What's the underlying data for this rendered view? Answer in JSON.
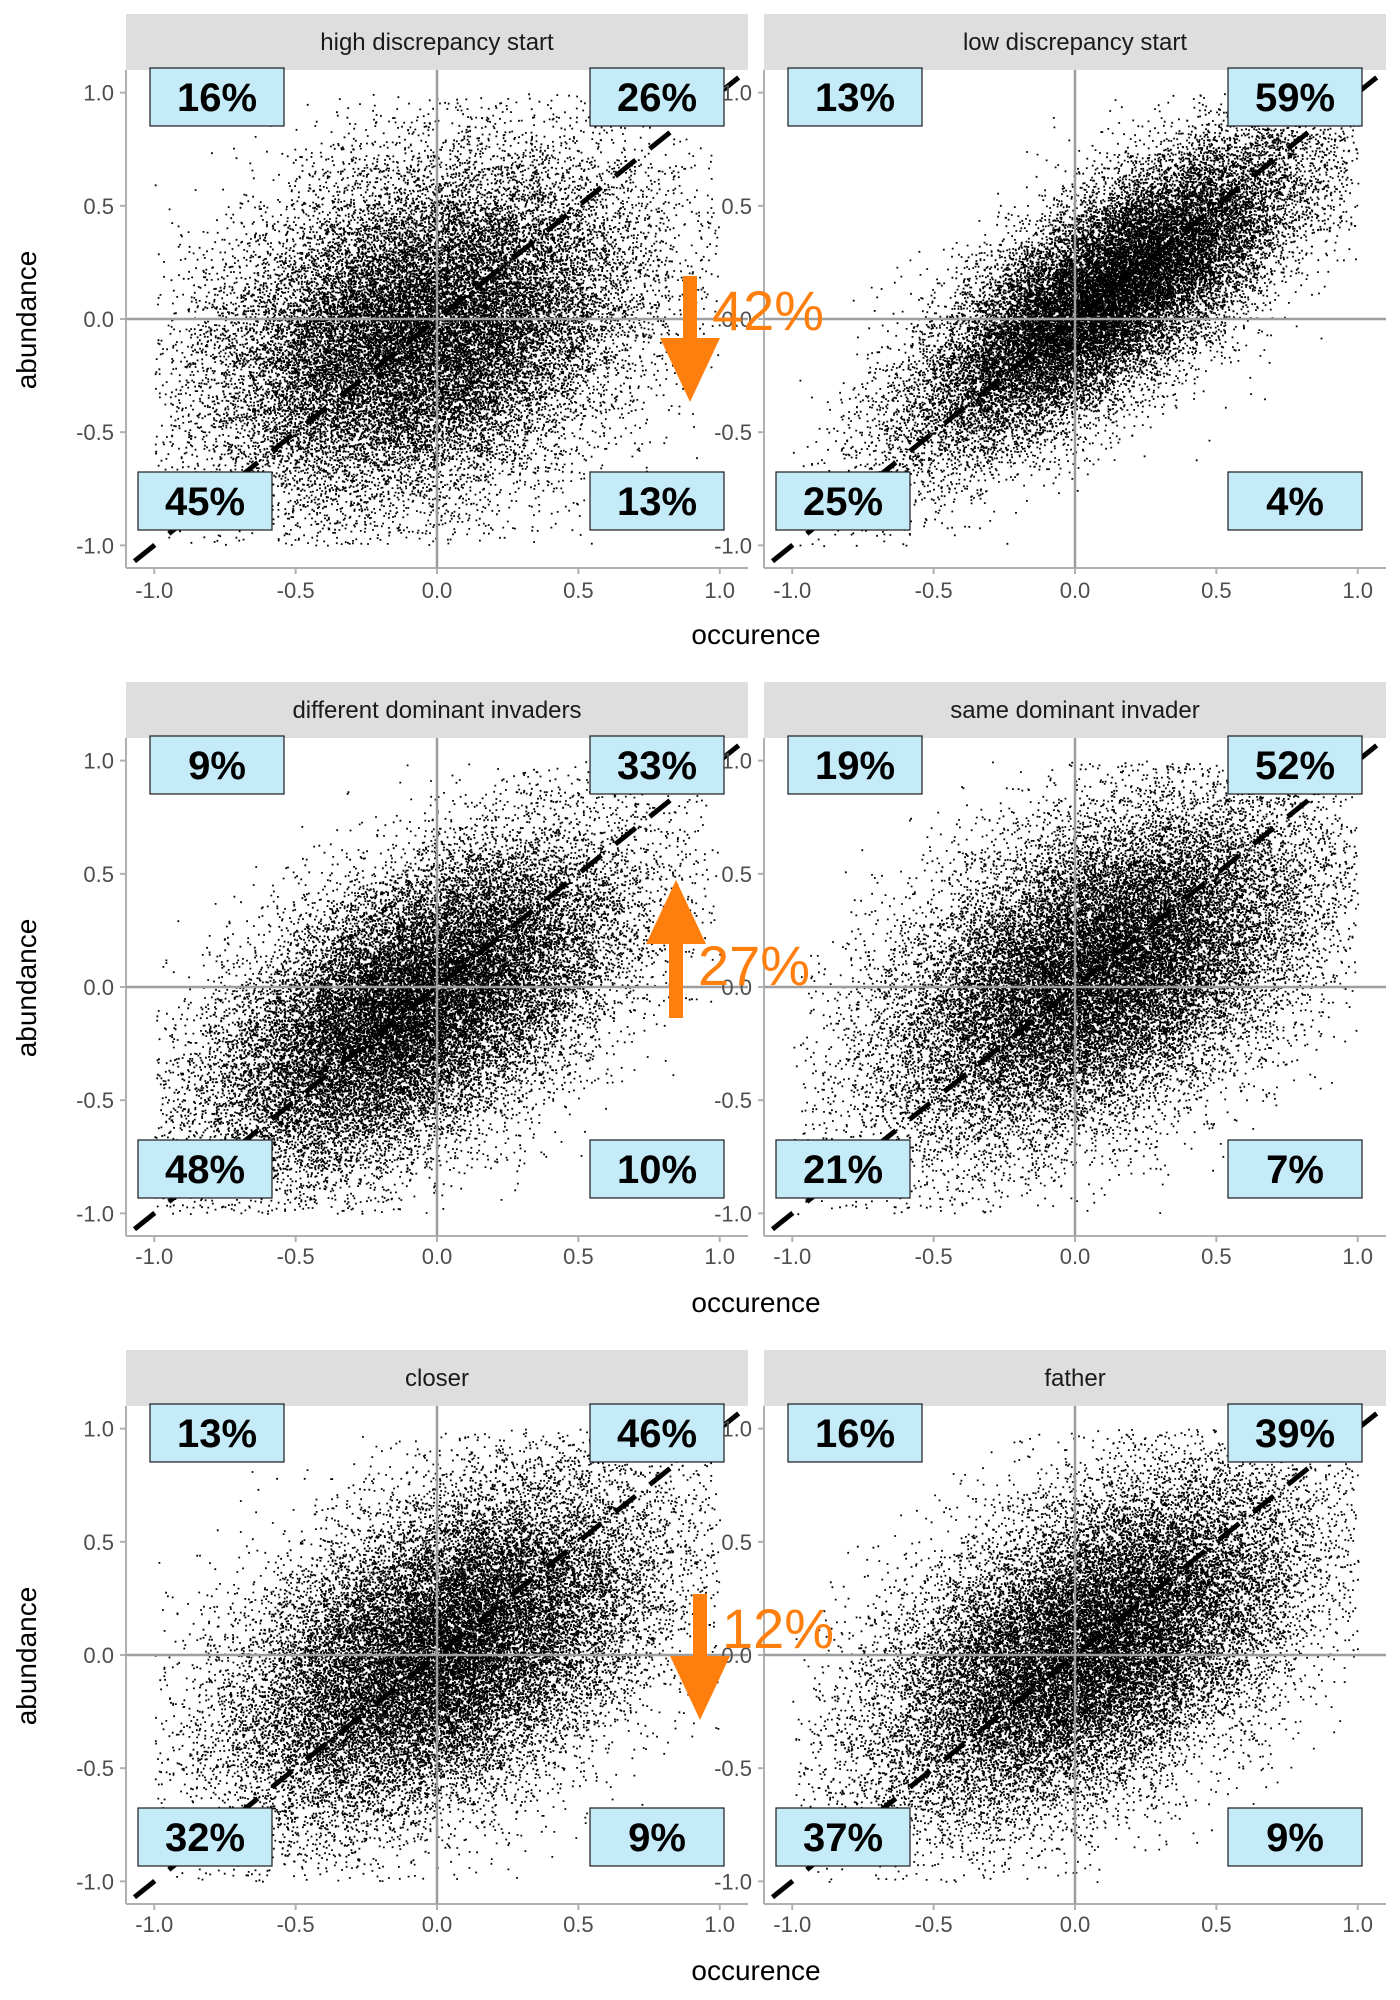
{
  "figure": {
    "x_axis_label": "occurence",
    "y_axis_label": "abundance",
    "x_ticks": [
      "-1.0",
      "-0.5",
      "0.0",
      "0.5",
      "1.0"
    ],
    "y_ticks": [
      "1.0",
      "0.5",
      "0.0",
      "-0.5",
      "-1.0"
    ]
  },
  "colors": {
    "panel_strip": "#dedede",
    "label_box": "#c6ebf8",
    "arrow": "#ff7f0e",
    "points": "#000000",
    "reference_line": "#9e9e9e"
  },
  "chart_data": [
    {
      "type": "scatter",
      "title": "high discrepancy start",
      "xlabel": "occurence",
      "ylabel": "abundance",
      "xlim": [
        -1.0,
        1.0
      ],
      "ylim": [
        -1.0,
        1.0
      ],
      "grid": false,
      "point_cloud": {
        "center": [
          -0.05,
          -0.05
        ],
        "major_sd": 0.43,
        "minor_sd": 0.31
      },
      "quadrant_labels": {
        "top_left": "16%",
        "top_right": "26%",
        "bottom_left": "45%",
        "bottom_right": "13%"
      }
    },
    {
      "type": "scatter",
      "title": "low discrepancy start",
      "xlabel": "occurence",
      "ylabel": "abundance",
      "xlim": [
        -1.0,
        1.0
      ],
      "ylim": [
        -1.0,
        1.0
      ],
      "grid": false,
      "point_cloud": {
        "center": [
          0.12,
          0.12
        ],
        "major_sd": 0.46,
        "minor_sd": 0.17
      },
      "quadrant_labels": {
        "top_left": "13%",
        "top_right": "59%",
        "bottom_left": "25%",
        "bottom_right": "4%"
      }
    },
    {
      "type": "scatter",
      "title": "different dominant invaders",
      "xlabel": "occurence",
      "ylabel": "abundance",
      "xlim": [
        -1.0,
        1.0
      ],
      "ylim": [
        -1.0,
        1.0
      ],
      "grid": false,
      "point_cloud": {
        "center": [
          -0.08,
          -0.08
        ],
        "major_sd": 0.46,
        "minor_sd": 0.24
      },
      "quadrant_labels": {
        "top_left": "9%",
        "top_right": "33%",
        "bottom_left": "48%",
        "bottom_right": "10%"
      }
    },
    {
      "type": "scatter",
      "title": "same dominant invader",
      "xlabel": "occurence",
      "ylabel": "abundance",
      "xlim": [
        -1.0,
        1.0
      ],
      "ylim": [
        -1.0,
        1.0
      ],
      "grid": false,
      "point_cloud": {
        "center": [
          0.08,
          0.08
        ],
        "major_sd": 0.46,
        "minor_sd": 0.27
      },
      "quadrant_labels": {
        "top_left": "19%",
        "top_right": "52%",
        "bottom_left": "21%",
        "bottom_right": "7%"
      }
    },
    {
      "type": "scatter",
      "title": "closer",
      "xlabel": "occurence",
      "ylabel": "abundance",
      "xlim": [
        -1.0,
        1.0
      ],
      "ylim": [
        -1.0,
        1.0
      ],
      "grid": false,
      "point_cloud": {
        "center": [
          0.02,
          0.02
        ],
        "major_sd": 0.46,
        "minor_sd": 0.27
      },
      "quadrant_labels": {
        "top_left": "13%",
        "top_right": "46%",
        "bottom_left": "32%",
        "bottom_right": "9%"
      }
    },
    {
      "type": "scatter",
      "title": "father",
      "xlabel": "occurence",
      "ylabel": "abundance",
      "xlim": [
        -1.0,
        1.0
      ],
      "ylim": [
        -1.0,
        1.0
      ],
      "grid": false,
      "point_cloud": {
        "center": [
          0.05,
          0.05
        ],
        "major_sd": 0.46,
        "minor_sd": 0.26
      },
      "quadrant_labels": {
        "top_left": "16%",
        "top_right": "39%",
        "bottom_left": "37%",
        "bottom_right": "9%"
      }
    }
  ],
  "annotations": [
    {
      "text": "42%",
      "direction": "down"
    },
    {
      "text": "27%",
      "direction": "up"
    },
    {
      "text": "12%",
      "direction": "down"
    }
  ]
}
